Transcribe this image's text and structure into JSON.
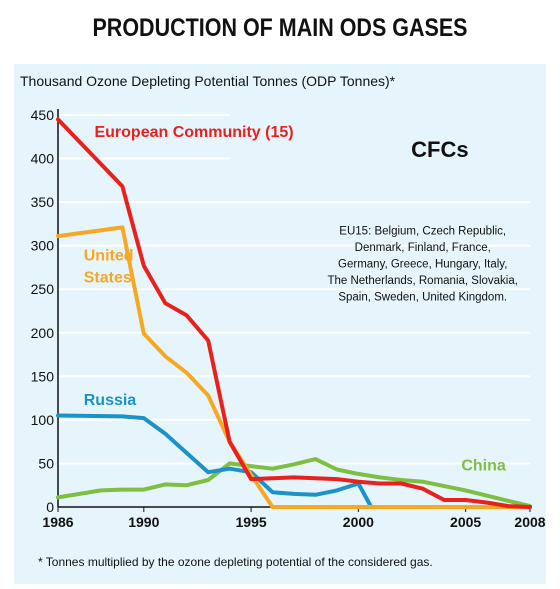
{
  "title": "PRODUCTION OF MAIN ODS GASES",
  "footnote": "* Tonnes multiplied by the ozone depleting potential of the considered gas.",
  "chart_data": {
    "type": "line",
    "title": "PRODUCTION OF MAIN ODS GASES",
    "ylabel": "Thousand Ozone Depleting Potential Tonnes (ODP Tonnes)*",
    "xlabel": "",
    "xlim": [
      1986,
      2008
    ],
    "ylim": [
      0,
      450
    ],
    "x_ticks": [
      "1986",
      "1990",
      "1995",
      "2000",
      "2005",
      "2008"
    ],
    "y_ticks": [
      "0",
      "50",
      "100",
      "150",
      "200",
      "250",
      "300",
      "350",
      "400",
      "450"
    ],
    "annotation_main": "CFCs",
    "annotation_eu": [
      "EU15: Belgium, Czech Republic,",
      "Denmark, Finland, France,",
      "Germany, Greece, Hungary, Italy,",
      "The Netherlands, Romania, Slovakia,",
      "Spain, Sweden, United Kingdom."
    ],
    "grid": "horizontal",
    "series": [
      {
        "name": "European Community (15)",
        "color": "#e8211d",
        "points": [
          [
            1986,
            445
          ],
          [
            1989,
            368
          ],
          [
            1990,
            277
          ],
          [
            1991,
            234
          ],
          [
            1992,
            220
          ],
          [
            1993,
            191
          ],
          [
            1994,
            75
          ],
          [
            1995,
            32
          ],
          [
            1996,
            33
          ],
          [
            1997,
            34
          ],
          [
            1998,
            33
          ],
          [
            1999,
            32
          ],
          [
            2000,
            29
          ],
          [
            2001,
            27
          ],
          [
            2002,
            27
          ],
          [
            2003,
            21
          ],
          [
            2004,
            8
          ],
          [
            2005,
            8
          ],
          [
            2006,
            5
          ],
          [
            2007,
            1
          ],
          [
            2008,
            0
          ]
        ]
      },
      {
        "name": "United States",
        "label_lines": [
          "United",
          "States"
        ],
        "color": "#f7a823",
        "points": [
          [
            1986,
            311
          ],
          [
            1989,
            321
          ],
          [
            1990,
            199
          ],
          [
            1991,
            173
          ],
          [
            1992,
            154
          ],
          [
            1993,
            128
          ],
          [
            1994,
            75
          ],
          [
            1995,
            37
          ],
          [
            1996,
            0
          ],
          [
            2008,
            0
          ]
        ]
      },
      {
        "name": "Russia",
        "color": "#1c93c8",
        "points": [
          [
            1986,
            105
          ],
          [
            1989,
            104
          ],
          [
            1990,
            102
          ],
          [
            1991,
            84
          ],
          [
            1992,
            62
          ],
          [
            1993,
            40
          ],
          [
            1994,
            44
          ],
          [
            1995,
            40
          ],
          [
            1996,
            17
          ],
          [
            1997,
            15
          ],
          [
            1998,
            14
          ],
          [
            1999,
            19
          ],
          [
            2000,
            27
          ],
          [
            2000.6,
            0
          ],
          [
            2008,
            0
          ]
        ]
      },
      {
        "name": "China",
        "color": "#7dbf42",
        "points": [
          [
            1986,
            11
          ],
          [
            1987,
            15
          ],
          [
            1988,
            19
          ],
          [
            1989,
            20
          ],
          [
            1990,
            20
          ],
          [
            1991,
            26
          ],
          [
            1992,
            25
          ],
          [
            1993,
            31
          ],
          [
            1994,
            50
          ],
          [
            1995,
            47
          ],
          [
            1996,
            44
          ],
          [
            1997,
            49
          ],
          [
            1998,
            55
          ],
          [
            1999,
            43
          ],
          [
            2000,
            38
          ],
          [
            2001,
            34
          ],
          [
            2002,
            31
          ],
          [
            2003,
            29
          ],
          [
            2004,
            24
          ],
          [
            2005,
            19
          ],
          [
            2006,
            13
          ],
          [
            2007,
            7
          ],
          [
            2008,
            1
          ]
        ]
      }
    ]
  }
}
